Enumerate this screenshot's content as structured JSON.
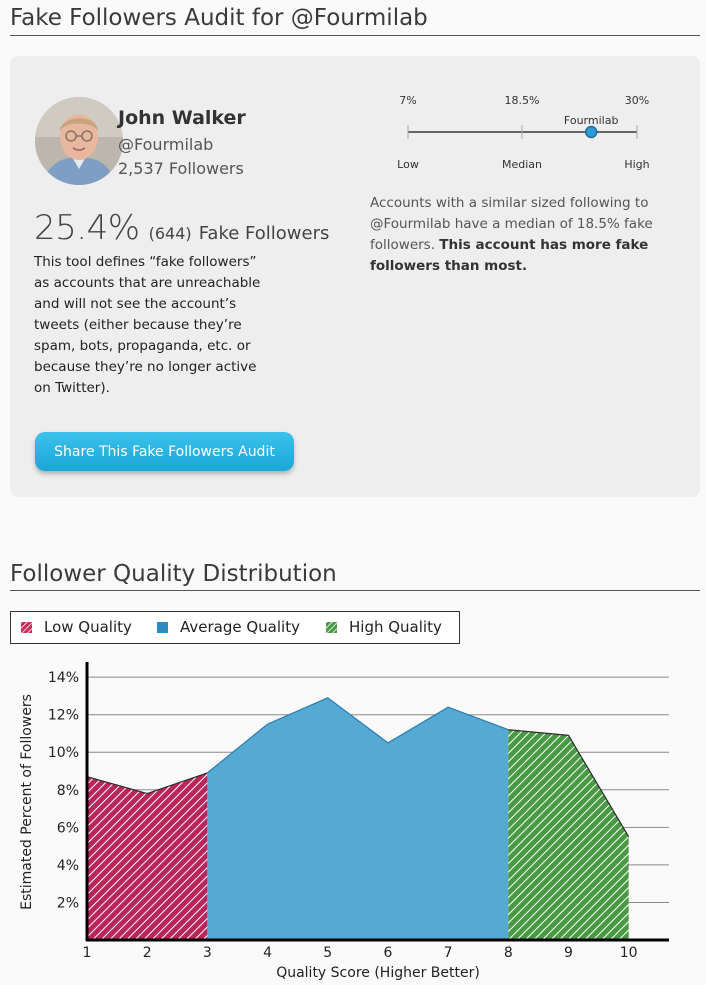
{
  "audit": {
    "title": "Fake Followers Audit for @Fourmilab",
    "name": "John Walker",
    "handle": "@Fourmilab",
    "followers": "2,537 Followers",
    "fake_pct": "25.4%",
    "fake_count": "(644)",
    "fake_label": "Fake Followers",
    "definition": "This tool defines “fake followers” as accounts that are unreachable and will not see the account’s tweets (either because they’re spam, bots, propaganda, etc. or because they’re no longer active on Twitter).",
    "share_button": "Share This Fake Followers Audit",
    "comparison_text": "Accounts with a similar sized following to @Fourmilab have a median of 18.5% fake followers.",
    "comparison_bold": "This account has more fake followers than most."
  },
  "scale": {
    "top_labels": [
      "7%",
      "18.5%",
      "30%"
    ],
    "bottom_labels": [
      "Low",
      "Median",
      "High"
    ],
    "marker_label": "Fourmilab",
    "min": 7,
    "median": 18.5,
    "max": 30,
    "marker_value": 25.4
  },
  "distribution": {
    "title": "Follower Quality Distribution",
    "legend": [
      {
        "label": "Low Quality",
        "color": "#c4305a",
        "pattern": "hatch"
      },
      {
        "label": "Average Quality",
        "color": "#2e8bbf",
        "pattern": "solid"
      },
      {
        "label": "High Quality",
        "color": "#4a9a45",
        "pattern": "hatch"
      }
    ]
  },
  "chart_data": {
    "type": "area",
    "xlabel": "Quality Score (Higher Better)",
    "ylabel": "Estimated Percent of Followers",
    "x": [
      1,
      2,
      3,
      4,
      5,
      6,
      7,
      8,
      9,
      10
    ],
    "y": [
      8.7,
      7.8,
      8.9,
      11.5,
      12.9,
      10.5,
      12.4,
      11.2,
      10.9,
      5.5
    ],
    "xlim": [
      1,
      10.67
    ],
    "ylim": [
      0,
      14.7
    ],
    "yticks": [
      2,
      4,
      6,
      8,
      10,
      12,
      14
    ],
    "ytick_labels": [
      "2%",
      "4%",
      "6%",
      "8%",
      "10%",
      "12%",
      "14%"
    ],
    "xtick_labels": [
      "1",
      "2",
      "3",
      "4",
      "5",
      "6",
      "7",
      "8",
      "9",
      "10"
    ],
    "grid": true,
    "regions": [
      {
        "name": "Low Quality",
        "from": 1,
        "to": 3,
        "color": "#c4305a",
        "fill": "#b8265a"
      },
      {
        "name": "Average Quality",
        "from": 3,
        "to": 8,
        "color": "#2e8bbf",
        "fill": "#56a9d3"
      },
      {
        "name": "High Quality",
        "from": 8,
        "to": 10,
        "color": "#3f8f3a",
        "fill": "#4a9a45"
      }
    ]
  }
}
